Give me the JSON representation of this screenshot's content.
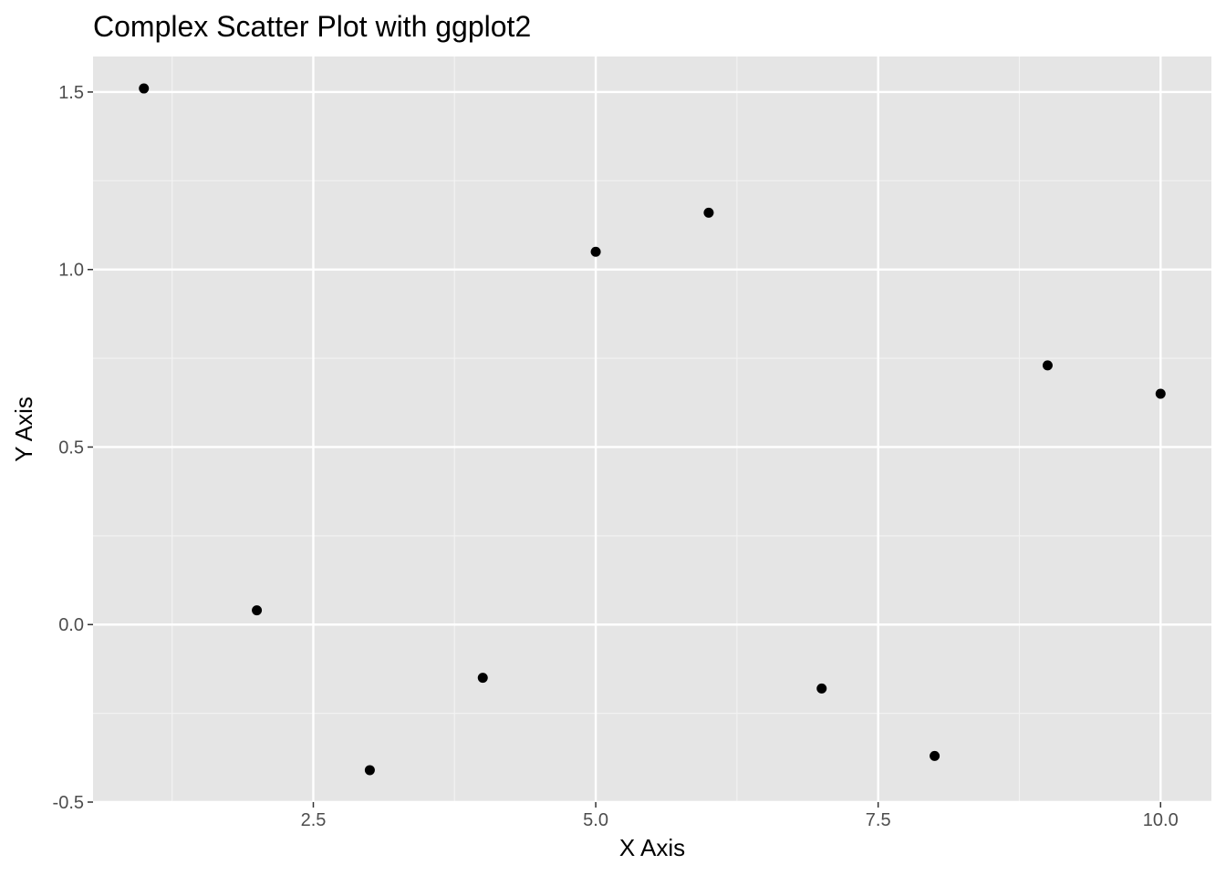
{
  "chart_data": {
    "type": "scatter",
    "title": "Complex Scatter Plot with ggplot2",
    "xlabel": "X Axis",
    "ylabel": "Y Axis",
    "xlim": [
      0.55,
      10.45
    ],
    "ylim": [
      -0.5,
      1.6
    ],
    "x_major_ticks": [
      2.5,
      5.0,
      7.5,
      10.0
    ],
    "x_minor_ticks": [
      1.25,
      3.75,
      6.25,
      8.75
    ],
    "y_major_ticks": [
      -0.5,
      0.0,
      0.5,
      1.0,
      1.5
    ],
    "y_minor_ticks": [
      -0.25,
      0.25,
      0.75,
      1.25
    ],
    "x_tick_labels": [
      "2.5",
      "5.0",
      "7.5",
      "10.0"
    ],
    "y_tick_labels": [
      "-0.5",
      "0.0",
      "0.5",
      "1.0",
      "1.5"
    ],
    "grid": true,
    "legend": "none",
    "x": [
      1,
      2,
      3,
      4,
      5,
      6,
      7,
      8,
      9,
      10
    ],
    "y": [
      1.51,
      0.04,
      -0.41,
      -0.15,
      1.05,
      1.16,
      -0.18,
      -0.37,
      0.73,
      0.65
    ],
    "colors": {
      "panel_background": "#e5e5e5",
      "major_grid": "#ffffff",
      "minor_grid": "#f2f2f2",
      "point": "#000000",
      "tick_label": "#4d4d4d",
      "tick_mark": "#333333"
    }
  }
}
